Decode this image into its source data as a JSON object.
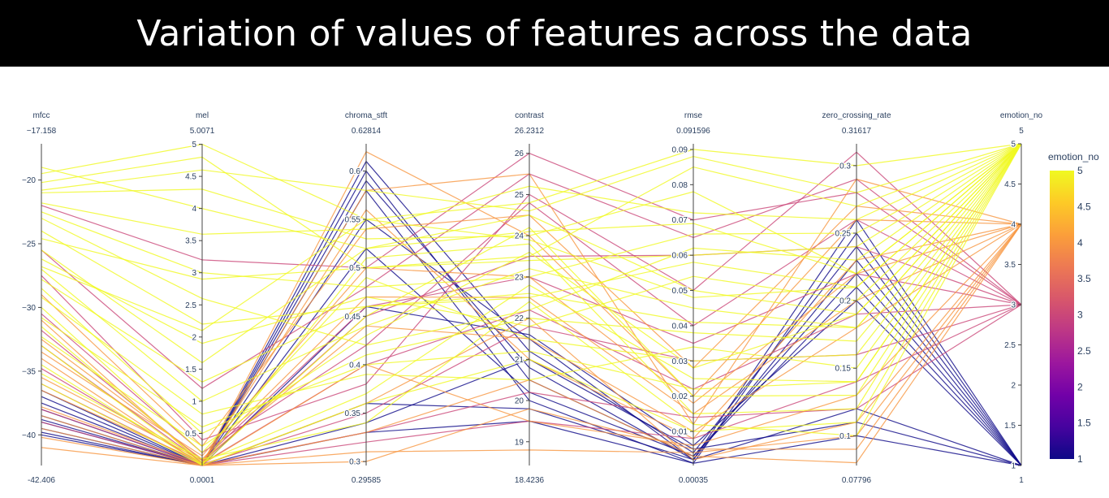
{
  "title": "Variation of values of features across the data",
  "chart_data": {
    "type": "parallel_coordinates",
    "title": "Variation of values of features across the data",
    "color_by": "emotion_no",
    "colorscale": [
      "#0d0887",
      "#46039f",
      "#7201a8",
      "#9c179e",
      "#bd3786",
      "#d8576b",
      "#ed7953",
      "#fb9f3a",
      "#fdca26",
      "#f0f921"
    ],
    "colorbar": {
      "title": "emotion_no",
      "ticks": [
        1,
        1.5,
        2,
        2.5,
        3,
        3.5,
        4,
        4.5,
        5
      ],
      "range": [
        1,
        5
      ]
    },
    "dimensions": [
      {
        "label": "mfcc",
        "range": [
          -42.406,
          -17.158
        ],
        "min_label": "-42.406",
        "max_label": "−17.158",
        "ticks": [
          -40,
          -35,
          -30,
          -25,
          -20
        ],
        "tick_labels": [
          "−40",
          "−35",
          "−30",
          "−25",
          "−20"
        ]
      },
      {
        "label": "mel",
        "range": [
          0.0001,
          5.0071
        ],
        "min_label": "0.0001",
        "max_label": "5.0071",
        "ticks": [
          0.5,
          1,
          1.5,
          2,
          2.5,
          3,
          3.5,
          4,
          4.5,
          5
        ],
        "tick_labels": [
          "0.5",
          "1",
          "1.5",
          "2",
          "2.5",
          "3",
          "3.5",
          "4",
          "4.5",
          "5"
        ]
      },
      {
        "label": "chroma_stft",
        "range": [
          0.29585,
          0.62814
        ],
        "min_label": "0.29585",
        "max_label": "0.62814",
        "ticks": [
          0.3,
          0.35,
          0.4,
          0.45,
          0.5,
          0.55,
          0.6
        ],
        "tick_labels": [
          "0.3",
          "0.35",
          "0.4",
          "0.45",
          "0.5",
          "0.55",
          "0.6"
        ]
      },
      {
        "label": "contrast",
        "range": [
          18.4236,
          26.2312
        ],
        "min_label": "18.4236",
        "max_label": "26.2312",
        "ticks": [
          19,
          20,
          21,
          22,
          23,
          24,
          25,
          26
        ],
        "tick_labels": [
          "19",
          "20",
          "21",
          "22",
          "23",
          "24",
          "25",
          "26"
        ]
      },
      {
        "label": "rmse",
        "range": [
          0.00035,
          0.091596
        ],
        "min_label": "0.00035",
        "max_label": "0.091596",
        "ticks": [
          0.01,
          0.02,
          0.03,
          0.04,
          0.05,
          0.06,
          0.07,
          0.08,
          0.09
        ],
        "tick_labels": [
          "0.01",
          "0.02",
          "0.03",
          "0.04",
          "0.05",
          "0.06",
          "0.07",
          "0.08",
          "0.09"
        ]
      },
      {
        "label": "zero_crossing_rate",
        "range": [
          0.07796,
          0.31617
        ],
        "min_label": "0.07796",
        "max_label": "0.31617",
        "ticks": [
          0.1,
          0.15,
          0.2,
          0.25,
          0.3
        ],
        "tick_labels": [
          "0.1",
          "0.15",
          "0.2",
          "0.25",
          "0.3"
        ]
      },
      {
        "label": "emotion_no",
        "range": [
          1,
          5
        ],
        "min_label": "1",
        "max_label": "5",
        "ticks": [
          1,
          1.5,
          2,
          2.5,
          3,
          3.5,
          4,
          4.5,
          5
        ],
        "tick_labels": [
          "1",
          "1.5",
          "2",
          "2.5",
          "3",
          "3.5",
          "4",
          "4.5",
          "5"
        ]
      }
    ],
    "records": [
      {
        "emotion_no": 5,
        "values": [
          -19.5,
          5.0,
          0.55,
          24.8,
          0.09,
          0.3
        ]
      },
      {
        "emotion_no": 5,
        "values": [
          -20.2,
          4.8,
          0.5,
          23.5,
          0.085,
          0.27
        ]
      },
      {
        "emotion_no": 5,
        "values": [
          -21.0,
          4.3,
          0.53,
          24.0,
          0.078,
          0.22
        ]
      },
      {
        "emotion_no": 5,
        "values": [
          -22.5,
          3.0,
          0.48,
          23.0,
          0.066,
          0.25
        ]
      },
      {
        "emotion_no": 5,
        "values": [
          -24.0,
          2.2,
          0.46,
          22.5,
          0.058,
          0.21
        ]
      },
      {
        "emotion_no": 5,
        "values": [
          -25.5,
          1.6,
          0.52,
          24.5,
          0.05,
          0.19
        ]
      },
      {
        "emotion_no": 5,
        "values": [
          -27.0,
          1.0,
          0.44,
          23.2,
          0.045,
          0.18
        ]
      },
      {
        "emotion_no": 5,
        "values": [
          -28.5,
          0.5,
          0.41,
          22.0,
          0.038,
          0.17
        ]
      },
      {
        "emotion_no": 5,
        "values": [
          -30.0,
          0.2,
          0.49,
          21.5,
          0.03,
          0.16
        ]
      },
      {
        "emotion_no": 5,
        "values": [
          -31.5,
          0.05,
          0.37,
          22.8,
          0.025,
          0.14
        ]
      },
      {
        "emotion_no": 5,
        "values": [
          -33.0,
          0.02,
          0.45,
          24.2,
          0.02,
          0.13
        ]
      },
      {
        "emotion_no": 5,
        "values": [
          -34.5,
          0.01,
          0.51,
          23.8,
          0.015,
          0.12
        ]
      },
      {
        "emotion_no": 5,
        "values": [
          -36.0,
          0.005,
          0.36,
          21.0,
          0.01,
          0.11
        ]
      },
      {
        "emotion_no": 5,
        "values": [
          -23.0,
          2.6,
          0.42,
          22.2,
          0.062,
          0.23
        ]
      },
      {
        "emotion_no": 5,
        "values": [
          -26.2,
          1.9,
          0.47,
          21.8,
          0.054,
          0.2
        ]
      },
      {
        "emotion_no": 5,
        "values": [
          -21.8,
          3.6,
          0.54,
          25.2,
          0.072,
          0.26
        ]
      },
      {
        "emotion_no": 5,
        "values": [
          -29.2,
          0.8,
          0.39,
          20.5,
          0.034,
          0.15
        ]
      },
      {
        "emotion_no": 5,
        "values": [
          -32.3,
          0.3,
          0.43,
          23.6,
          0.028,
          0.19
        ]
      },
      {
        "emotion_no": 5,
        "values": [
          -35.2,
          0.1,
          0.34,
          22.4,
          0.012,
          0.1
        ]
      },
      {
        "emotion_no": 5,
        "values": [
          -20.8,
          4.6,
          0.58,
          24.6,
          0.088,
          0.28
        ]
      },
      {
        "emotion_no": 5,
        "values": [
          -24.6,
          2.9,
          0.5,
          23.4,
          0.06,
          0.24
        ]
      },
      {
        "emotion_no": 5,
        "values": [
          -27.8,
          1.3,
          0.46,
          22.6,
          0.041,
          0.18
        ]
      },
      {
        "emotion_no": 5,
        "values": [
          -19.0,
          4.0,
          0.52,
          24.1,
          0.069,
          0.22
        ]
      },
      {
        "emotion_no": 5,
        "values": [
          -30.8,
          0.6,
          0.4,
          21.2,
          0.022,
          0.14
        ]
      },
      {
        "emotion_no": 5,
        "values": [
          -26.8,
          2.1,
          0.55,
          23.9,
          0.048,
          0.21
        ]
      },
      {
        "emotion_no": 4,
        "values": [
          -38.5,
          0.001,
          0.3,
          19.8,
          0.005,
          0.09
        ]
      },
      {
        "emotion_no": 4,
        "values": [
          -34.0,
          0.01,
          0.58,
          25.5,
          0.012,
          0.29
        ]
      },
      {
        "emotion_no": 4,
        "values": [
          -31.0,
          0.02,
          0.62,
          24.0,
          0.02,
          0.26
        ]
      },
      {
        "emotion_no": 4,
        "values": [
          -36.5,
          0.05,
          0.56,
          21.0,
          0.008,
          0.23
        ]
      },
      {
        "emotion_no": 4,
        "values": [
          -39.5,
          0.002,
          0.33,
          20.5,
          0.003,
          0.08
        ]
      },
      {
        "emotion_no": 4,
        "values": [
          -41.0,
          0.0005,
          0.36,
          22.0,
          0.002,
          0.11
        ]
      },
      {
        "emotion_no": 4,
        "values": [
          -33.5,
          0.15,
          0.5,
          23.0,
          0.018,
          0.22
        ]
      },
      {
        "emotion_no": 4,
        "values": [
          -35.5,
          0.08,
          0.44,
          21.5,
          0.01,
          0.18
        ]
      },
      {
        "emotion_no": 4,
        "values": [
          -29.0,
          0.3,
          0.54,
          24.5,
          0.028,
          0.27
        ]
      },
      {
        "emotion_no": 4,
        "values": [
          -37.8,
          0.02,
          0.4,
          19.5,
          0.006,
          0.13
        ]
      },
      {
        "emotion_no": 4,
        "values": [
          -32.5,
          0.1,
          0.47,
          22.5,
          0.015,
          0.2
        ]
      },
      {
        "emotion_no": 4,
        "values": [
          -40.2,
          0.003,
          0.31,
          18.8,
          0.004,
          0.1
        ]
      },
      {
        "emotion_no": 3,
        "values": [
          -22.0,
          3.2,
          0.5,
          26.0,
          0.07,
          0.28
        ]
      },
      {
        "emotion_no": 3,
        "values": [
          -27.5,
          0.4,
          0.38,
          25.0,
          0.05,
          0.31
        ]
      },
      {
        "emotion_no": 3,
        "values": [
          -33.0,
          0.05,
          0.45,
          23.5,
          0.06,
          0.24
        ]
      },
      {
        "emotion_no": 3,
        "values": [
          -36.0,
          0.02,
          0.35,
          21.8,
          0.03,
          0.16
        ]
      },
      {
        "emotion_no": 3,
        "values": [
          -38.0,
          0.01,
          0.33,
          20.2,
          0.014,
          0.12
        ]
      },
      {
        "emotion_no": 3,
        "values": [
          -30.5,
          0.2,
          0.42,
          24.8,
          0.04,
          0.26
        ]
      },
      {
        "emotion_no": 3,
        "values": [
          -34.8,
          0.03,
          0.4,
          22.2,
          0.022,
          0.19
        ]
      },
      {
        "emotion_no": 3,
        "values": [
          -25.5,
          1.2,
          0.48,
          25.5,
          0.065,
          0.29
        ]
      },
      {
        "emotion_no": 3,
        "values": [
          -39.0,
          0.005,
          0.32,
          19.5,
          0.008,
          0.14
        ]
      },
      {
        "emotion_no": 3,
        "values": [
          -31.8,
          0.08,
          0.46,
          23.0,
          0.035,
          0.22
        ]
      },
      {
        "emotion_no": 1,
        "values": [
          -38.0,
          0.001,
          0.6,
          20.5,
          0.003,
          0.22
        ]
      },
      {
        "emotion_no": 1,
        "values": [
          -39.0,
          0.0005,
          0.59,
          20.8,
          0.002,
          0.26
        ]
      },
      {
        "emotion_no": 1,
        "values": [
          -37.5,
          0.002,
          0.61,
          21.2,
          0.004,
          0.24
        ]
      },
      {
        "emotion_no": 1,
        "values": [
          -39.5,
          0.0003,
          0.58,
          20.0,
          0.001,
          0.25
        ]
      },
      {
        "emotion_no": 1,
        "values": [
          -38.5,
          0.001,
          0.55,
          21.5,
          0.002,
          0.23
        ]
      },
      {
        "emotion_no": 1,
        "values": [
          -40.0,
          0.0002,
          0.36,
          19.8,
          0.002,
          0.12
        ]
      },
      {
        "emotion_no": 1,
        "values": [
          -37.0,
          0.003,
          0.34,
          21.0,
          0.005,
          0.11
        ]
      },
      {
        "emotion_no": 1,
        "values": [
          -36.5,
          0.004,
          0.46,
          21.6,
          0.006,
          0.2
        ]
      },
      {
        "emotion_no": 1,
        "values": [
          -38.8,
          0.001,
          0.52,
          20.2,
          0.003,
          0.21
        ]
      },
      {
        "emotion_no": 1,
        "values": [
          -39.8,
          0.0004,
          0.33,
          19.5,
          0.001,
          0.1
        ]
      }
    ]
  }
}
